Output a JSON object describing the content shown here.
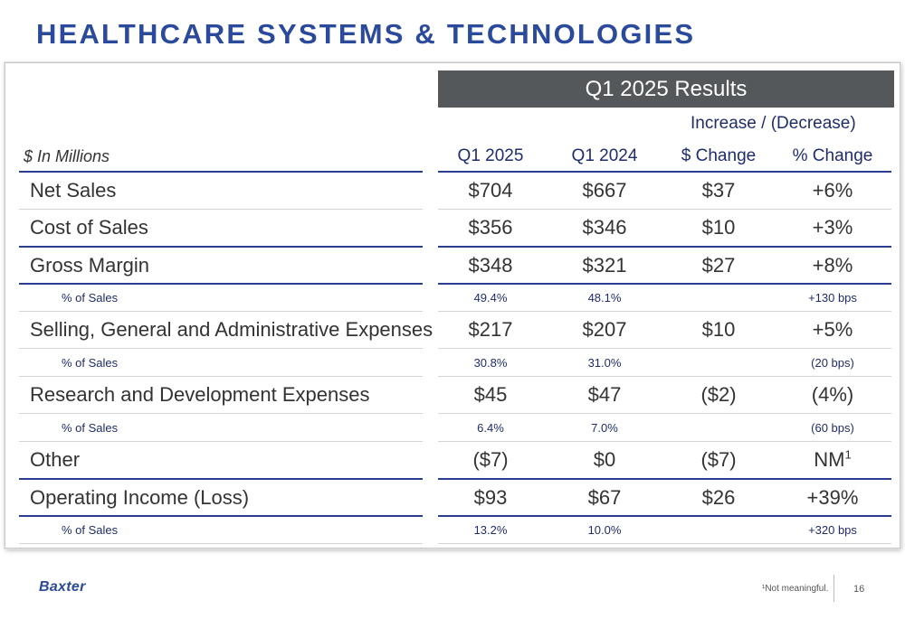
{
  "page": {
    "title": "HEALTHCARE SYSTEMS & TECHNOLOGIES",
    "footnote": "¹Not meaningful.",
    "page_number": "16",
    "logo_text": "Baxter"
  },
  "table": {
    "header": "Q1 2025 Results",
    "change_group": "Increase / (Decrease)",
    "units": "$ In Millions",
    "columns": [
      "Q1 2025",
      "Q1 2024",
      "$ Change",
      "% Change"
    ],
    "rows": [
      {
        "label": "Net Sales",
        "q1_2025": "$704",
        "q1_2024": "$667",
        "dollar_change": "$37",
        "pct_change": "+6%"
      },
      {
        "label": "Cost of Sales",
        "q1_2025": "$356",
        "q1_2024": "$346",
        "dollar_change": "$10",
        "pct_change": "+3%"
      },
      {
        "label": "Gross Margin",
        "q1_2025": "$348",
        "q1_2024": "$321",
        "dollar_change": "$27",
        "pct_change": "+8%"
      },
      {
        "label": "% of Sales",
        "q1_2025": "49.4%",
        "q1_2024": "48.1%",
        "dollar_change": "",
        "pct_change": "+130 bps"
      },
      {
        "label": "Selling, General and Administrative Expenses",
        "q1_2025": "$217",
        "q1_2024": "$207",
        "dollar_change": "$10",
        "pct_change": "+5%"
      },
      {
        "label": "% of Sales",
        "q1_2025": "30.8%",
        "q1_2024": "31.0%",
        "dollar_change": "",
        "pct_change": "(20 bps)"
      },
      {
        "label": "Research and Development Expenses",
        "q1_2025": "$45",
        "q1_2024": "$47",
        "dollar_change": "($2)",
        "pct_change": "(4%)"
      },
      {
        "label": "% of Sales",
        "q1_2025": "6.4%",
        "q1_2024": "7.0%",
        "dollar_change": "",
        "pct_change": "(60 bps)"
      },
      {
        "label": "Other",
        "q1_2025": "($7)",
        "q1_2024": "$0",
        "dollar_change": "($7)",
        "pct_change": "NM",
        "pct_change_sup": "1"
      },
      {
        "label": "Operating Income (Loss)",
        "q1_2025": "$93",
        "q1_2024": "$67",
        "dollar_change": "$26",
        "pct_change": "+39%"
      },
      {
        "label": "% of Sales",
        "q1_2025": "13.2%",
        "q1_2024": "10.0%",
        "dollar_change": "",
        "pct_change": "+320 bps"
      }
    ]
  },
  "colors": {
    "title_blue": "#2b4a9b",
    "header_gray": "#54585a",
    "rule_navy": "#2b3d8f",
    "subrow_navy": "#1f2d6b"
  }
}
